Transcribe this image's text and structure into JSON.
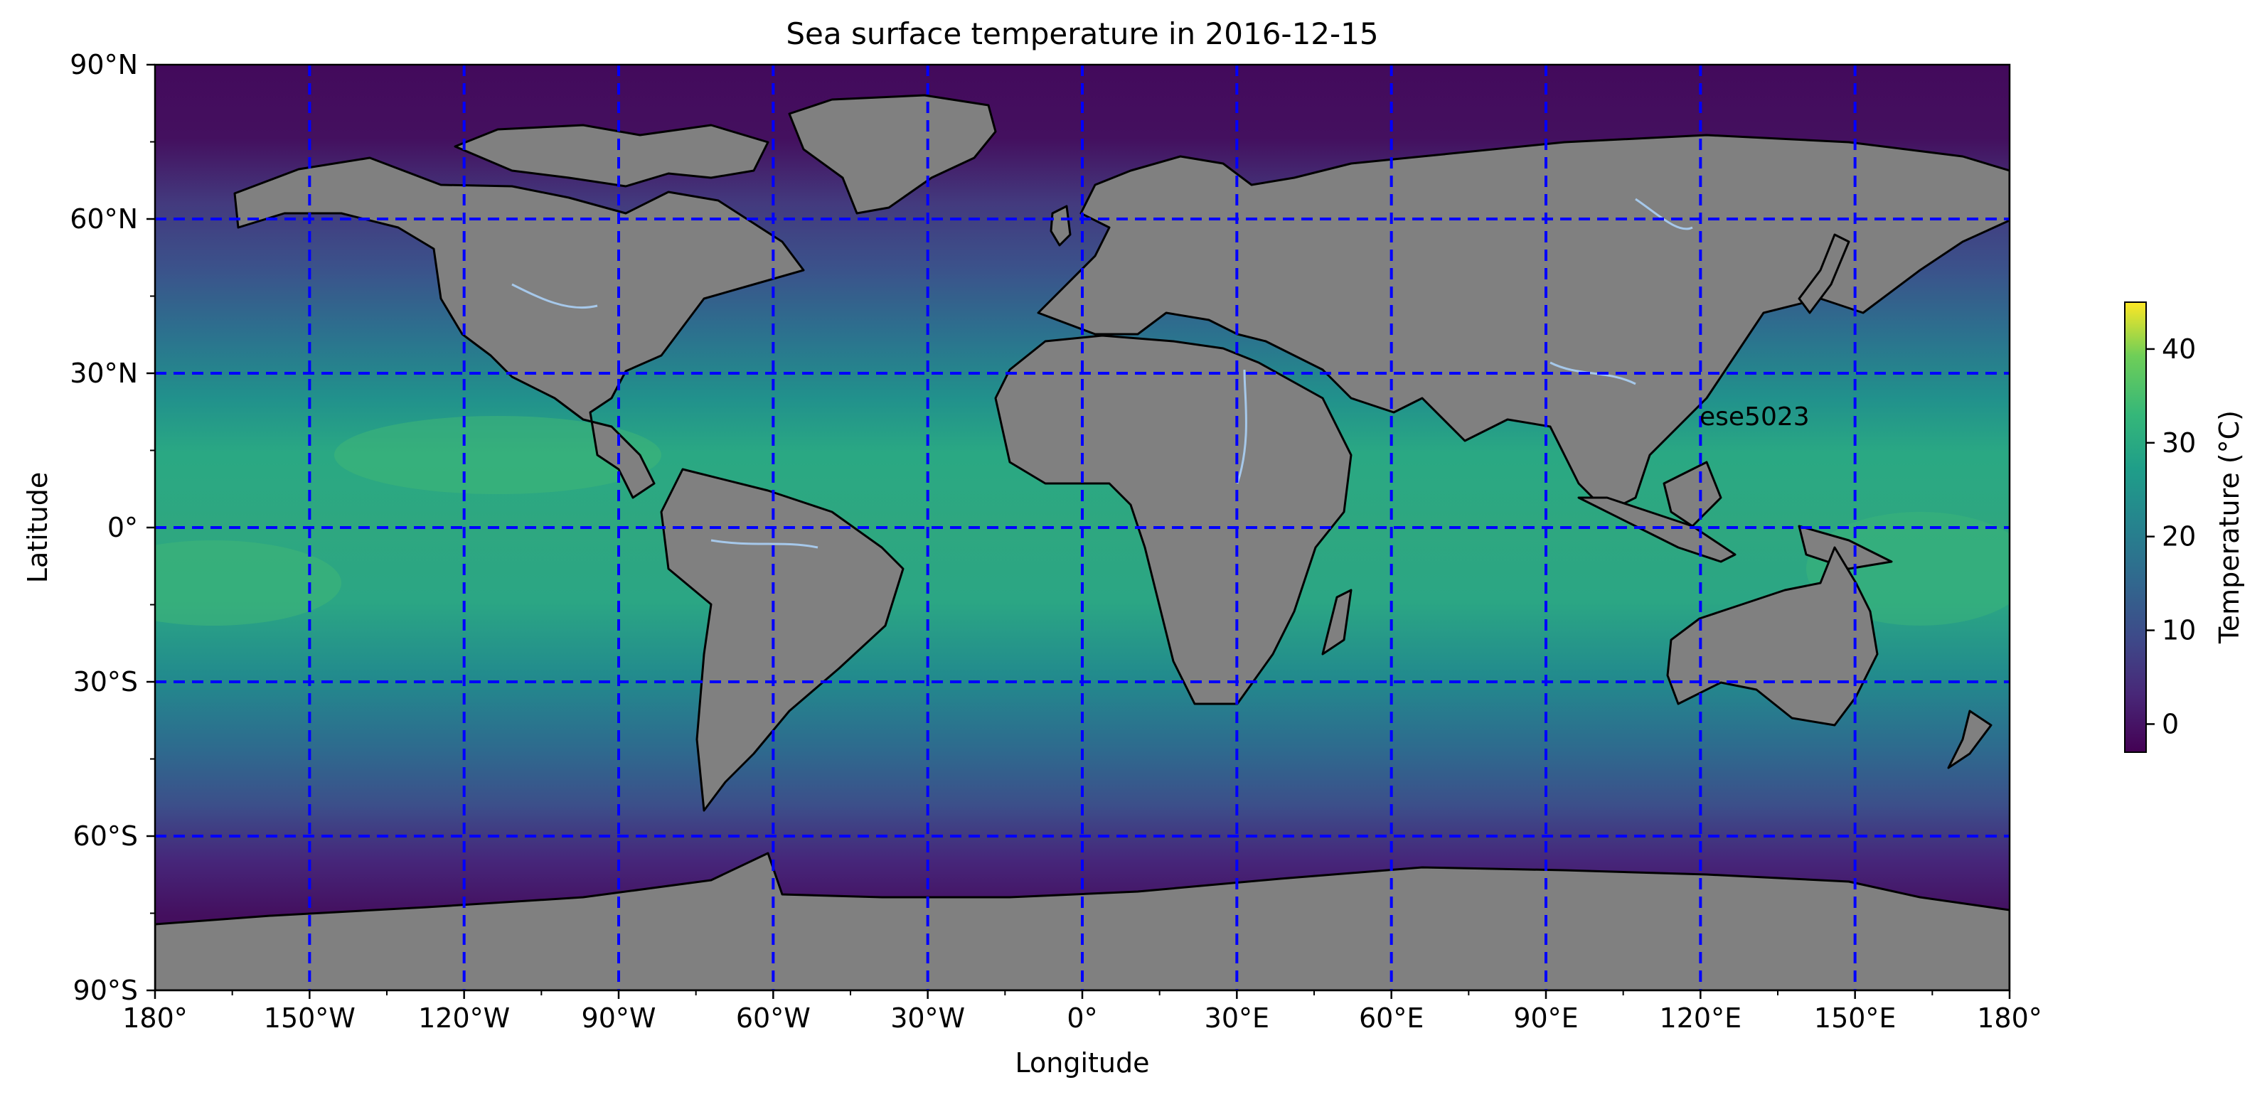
{
  "title": "Sea surface temperature in 2016-12-15",
  "annotation": "ese5023",
  "axes": {
    "xlabel": "Longitude",
    "ylabel": "Latitude",
    "xticks": [
      "180°",
      "150°W",
      "120°W",
      "90°W",
      "60°W",
      "30°W",
      "0°",
      "30°E",
      "60°E",
      "90°E",
      "120°E",
      "150°E",
      "180°"
    ],
    "yticks": [
      "90°N",
      "60°N",
      "30°N",
      "0°",
      "30°S",
      "60°S",
      "90°S"
    ]
  },
  "colorbar": {
    "label": "Temperature (°C)",
    "ticks": [
      "0",
      "10",
      "20",
      "30",
      "40"
    ],
    "range": [
      -3,
      45
    ],
    "colormap": "viridis"
  },
  "colors": {
    "land": "#808080",
    "grid": "#0000ff",
    "rivers": "#a6c8ea",
    "coast": "#000000"
  },
  "chart_data": {
    "type": "heatmap",
    "title": "Sea surface temperature in 2016-12-15",
    "xlabel": "Longitude",
    "ylabel": "Latitude",
    "xlim": [
      -180,
      180
    ],
    "ylim": [
      -90,
      90
    ],
    "grid": true,
    "projection": "PlateCarree",
    "colorbar_label": "Temperature (°C)",
    "colorbar_range": [
      -3,
      45
    ],
    "gridlines_lon": [
      -150,
      -120,
      -90,
      -60,
      -30,
      0,
      30,
      60,
      90,
      120,
      150
    ],
    "gridlines_lat": [
      -60,
      -30,
      0,
      30,
      60
    ],
    "sst_by_latitude": [
      {
        "lat": 75,
        "value": -1.5
      },
      {
        "lat": 65,
        "value": 1
      },
      {
        "lat": 55,
        "value": 6
      },
      {
        "lat": 45,
        "value": 13
      },
      {
        "lat": 35,
        "value": 20
      },
      {
        "lat": 25,
        "value": 25
      },
      {
        "lat": 15,
        "value": 27
      },
      {
        "lat": 5,
        "value": 28
      },
      {
        "lat": -5,
        "value": 28
      },
      {
        "lat": -15,
        "value": 27
      },
      {
        "lat": -25,
        "value": 24
      },
      {
        "lat": -35,
        "value": 19
      },
      {
        "lat": -45,
        "value": 12
      },
      {
        "lat": -55,
        "value": 5
      },
      {
        "lat": -65,
        "value": 0
      },
      {
        "lat": -75,
        "value": -1.5
      }
    ]
  }
}
